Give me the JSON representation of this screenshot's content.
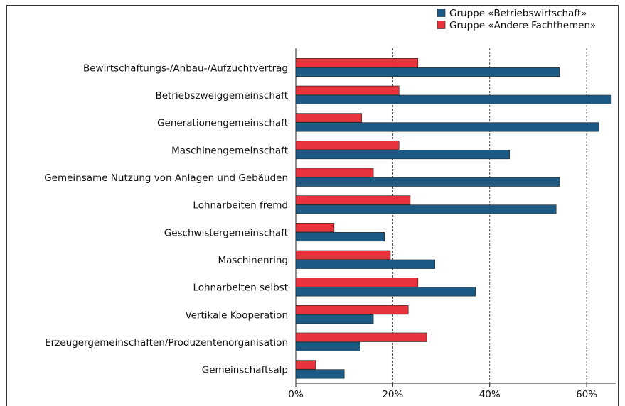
{
  "chart_data": {
    "type": "barh",
    "categories": [
      "Bewirtschaftungs-/Anbau-/Aufzuchtvertrag",
      "Betriebszweiggemeinschaft",
      "Generationengemeinschaft",
      "Maschinengemeinschaft",
      "Gemeinsame Nutzung von Anlagen und Gebäuden",
      "Lohnarbeiten fremd",
      "Geschwistergemeinschaft",
      "Maschinenring",
      "Lohnarbeiten selbst",
      "Vertikale Kooperation",
      "Erzeugergemeinschaften/Produzentenorganisation",
      "Gemeinschaftsalp"
    ],
    "series": [
      {
        "name": "Gruppe «Betriebswirtschaft»",
        "color": "#1c5a83",
        "values": [
          54.4,
          65.1,
          62.5,
          44.1,
          54.4,
          53.7,
          18.3,
          28.7,
          37.1,
          16.0,
          13.3,
          10.0
        ]
      },
      {
        "name": "Gruppe «Andere Fachthemen»",
        "color": "#e8323c",
        "values": [
          25.2,
          21.3,
          13.6,
          21.3,
          16.0,
          23.6,
          7.9,
          19.5,
          25.2,
          23.2,
          27.0,
          4.1
        ]
      }
    ],
    "xlim": [
      0,
      66
    ],
    "xticks": [
      {
        "value": 0,
        "label": "0%"
      },
      {
        "value": 20,
        "label": "20%"
      },
      {
        "value": 40,
        "label": "40%"
      },
      {
        "value": 60,
        "label": "60%"
      }
    ],
    "grid": true,
    "legend": "top-right"
  }
}
